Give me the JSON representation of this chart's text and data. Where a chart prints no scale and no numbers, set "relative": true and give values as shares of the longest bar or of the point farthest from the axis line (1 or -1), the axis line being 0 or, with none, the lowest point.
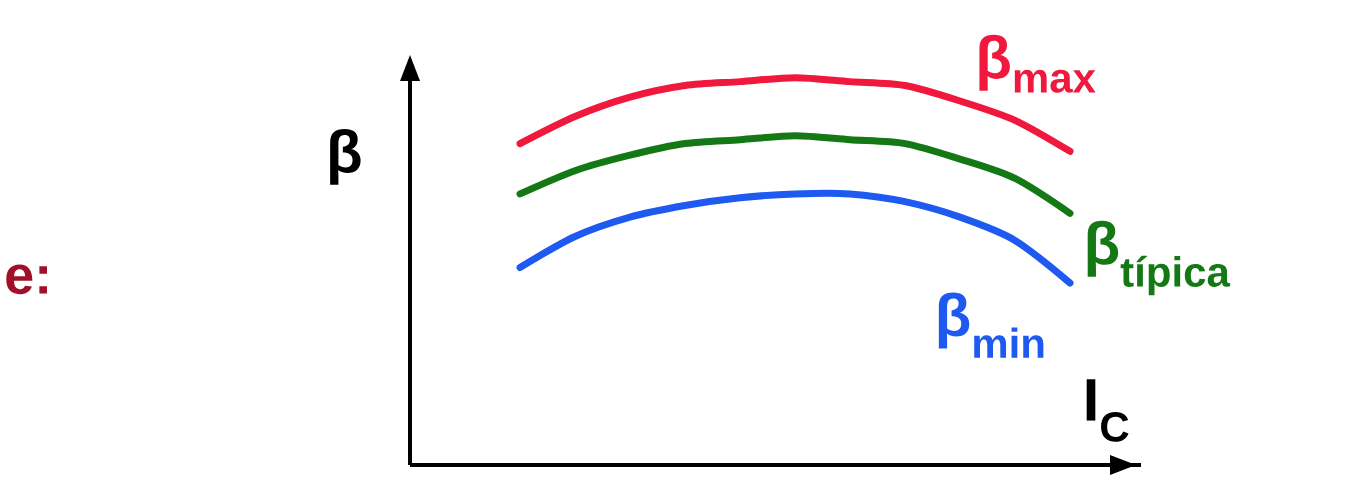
{
  "chart_data": {
    "type": "line",
    "relative": true,
    "xlabel": "I$_{C}$",
    "ylabel": "β",
    "annotations": [
      "e:"
    ],
    "categories": [
      null,
      null,
      null,
      null,
      null,
      null,
      null,
      null,
      null,
      null,
      null,
      null,
      null,
      null
    ],
    "series": [
      {
        "name": "β$_{max}$",
        "color": "#f0183c",
        "values": [
          null,
          null,
          0.83,
          0.9,
          0.95,
          0.98,
          0.99,
          1.0,
          0.99,
          0.98,
          0.94,
          0.89,
          0.81,
          null
        ]
      },
      {
        "name": "β$_{típica}$",
        "color": "#147814",
        "values": [
          null,
          null,
          0.7,
          0.76,
          0.8,
          0.83,
          0.84,
          0.85,
          0.84,
          0.83,
          0.79,
          0.74,
          0.65,
          null
        ]
      },
      {
        "name": "β$_{min}$",
        "color": "#1e5af0",
        "values": [
          null,
          null,
          0.51,
          0.59,
          0.64,
          0.67,
          0.69,
          0.7,
          0.7,
          0.68,
          0.64,
          0.58,
          0.47,
          null
        ]
      }
    ],
    "marker": "none",
    "line_style": "solid"
  }
}
